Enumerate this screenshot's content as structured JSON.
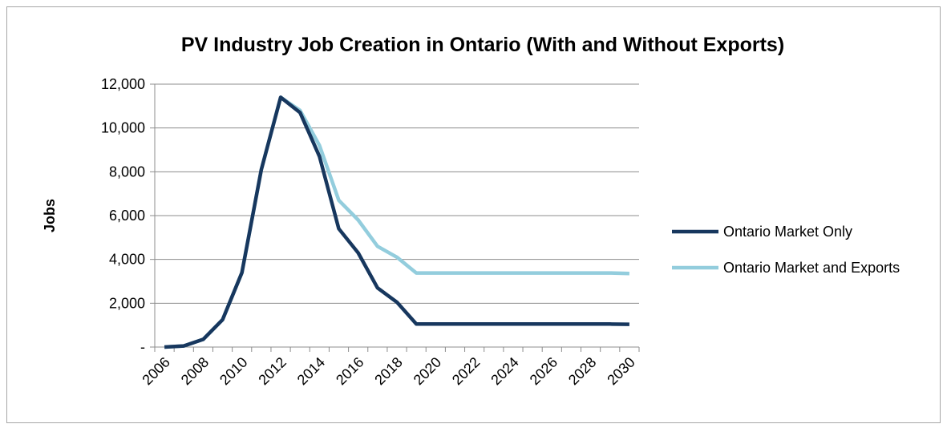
{
  "chart_data": {
    "type": "line",
    "title": "PV Industry Job Creation in Ontario (With and Without Exports)",
    "xlabel": "",
    "ylabel": "Jobs",
    "x": [
      2006,
      2007,
      2008,
      2009,
      2010,
      2011,
      2012,
      2013,
      2014,
      2015,
      2016,
      2017,
      2018,
      2019,
      2020,
      2021,
      2022,
      2023,
      2024,
      2025,
      2026,
      2027,
      2028,
      2029,
      2030
    ],
    "x_tick_labels": [
      "2006",
      "2008",
      "2010",
      "2012",
      "2014",
      "2016",
      "2018",
      "2020",
      "2022",
      "2024",
      "2026",
      "2028",
      "2030"
    ],
    "y_tick_labels": [
      "-",
      "2,000",
      "4,000",
      "6,000",
      "8,000",
      "10,000",
      "12,000"
    ],
    "y_ticks": [
      0,
      2000,
      4000,
      6000,
      8000,
      10000,
      12000
    ],
    "ylim": [
      0,
      12000
    ],
    "grid": true,
    "legend_position": "right",
    "series": [
      {
        "name": "Ontario Market Only",
        "color": "#17375e",
        "values": [
          0,
          50,
          350,
          1250,
          3400,
          8100,
          11400,
          10700,
          8700,
          5400,
          4300,
          2700,
          2050,
          1050,
          1050,
          1050,
          1050,
          1050,
          1050,
          1050,
          1050,
          1050,
          1050,
          1050,
          1040
        ]
      },
      {
        "name": "Ontario Market and Exports",
        "color": "#93cddd",
        "values": [
          0,
          50,
          350,
          1250,
          3400,
          8100,
          11400,
          10800,
          9200,
          6700,
          5800,
          4600,
          4100,
          3380,
          3380,
          3380,
          3380,
          3380,
          3380,
          3380,
          3380,
          3380,
          3380,
          3380,
          3360
        ]
      }
    ]
  }
}
